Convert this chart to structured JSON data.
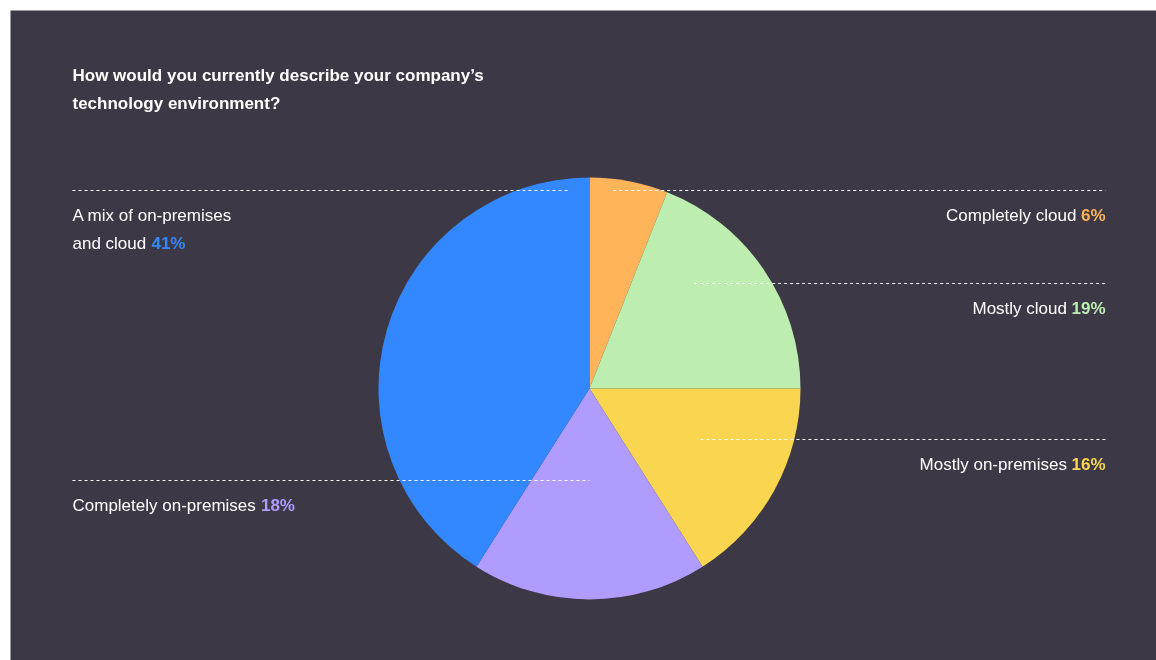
{
  "chart_data": {
    "type": "pie",
    "title": "How would you currently describe your company’s technology environment?",
    "categories": [
      "Completely cloud",
      "Mostly cloud",
      "Mostly on-premises",
      "Completely on-premises",
      "A mix of on-premises and cloud"
    ],
    "values": [
      6,
      19,
      16,
      18,
      41
    ],
    "value_labels": [
      "6%",
      "19%",
      "16%",
      "18%",
      "41%"
    ],
    "colors": [
      "#ffb45a",
      "#bdeeb0",
      "#fad650",
      "#b09cff",
      "#3388ff"
    ]
  }
}
